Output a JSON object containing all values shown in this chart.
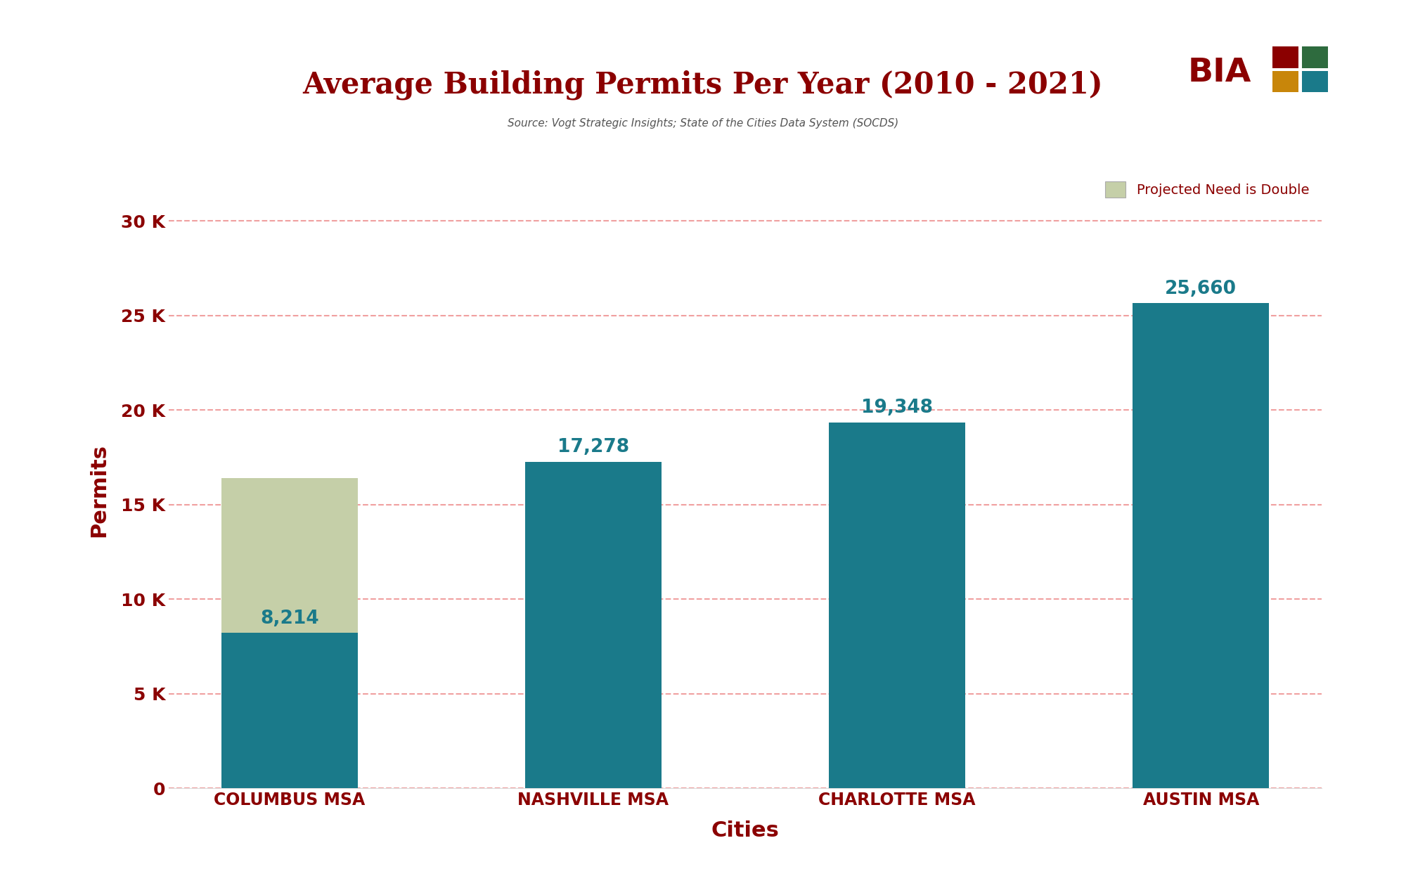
{
  "title": "Average Building Permits Per Year (2010 - 2021)",
  "subtitle": "Source: Vogt Strategic Insights; State of the Cities Data System (SOCDS)",
  "xlabel": "Cities",
  "ylabel": "Permits",
  "categories": [
    "COLUMBUS MSA",
    "NASHVILLE MSA",
    "CHARLOTTE MSA",
    "AUSTIN MSA"
  ],
  "values": [
    8214,
    17278,
    19348,
    25660
  ],
  "projected_columbus": 16428,
  "bar_color": "#1a7a8a",
  "projected_color": "#c5cfa8",
  "label_color": "#1a7a8a",
  "axis_color": "#8b0000",
  "title_color": "#8b0000",
  "grid_color": "#f0a0a0",
  "background_color": "#ffffff",
  "ylim": [
    0,
    31500
  ],
  "yticks": [
    0,
    5000,
    10000,
    15000,
    20000,
    25000,
    30000
  ],
  "ytick_labels": [
    "0",
    "5 K",
    "10 K",
    "15 K",
    "20 K",
    "25 K",
    "30 K"
  ],
  "title_fontsize": 30,
  "subtitle_fontsize": 11,
  "axis_label_fontsize": 22,
  "tick_fontsize": 18,
  "bar_label_fontsize": 19,
  "legend_label": "Projected Need is Double",
  "bar_width": 0.45,
  "bia_colors": [
    [
      "#8b0000",
      "#2e6b3e"
    ],
    [
      "#c8860a",
      "#1a7a8a"
    ]
  ]
}
